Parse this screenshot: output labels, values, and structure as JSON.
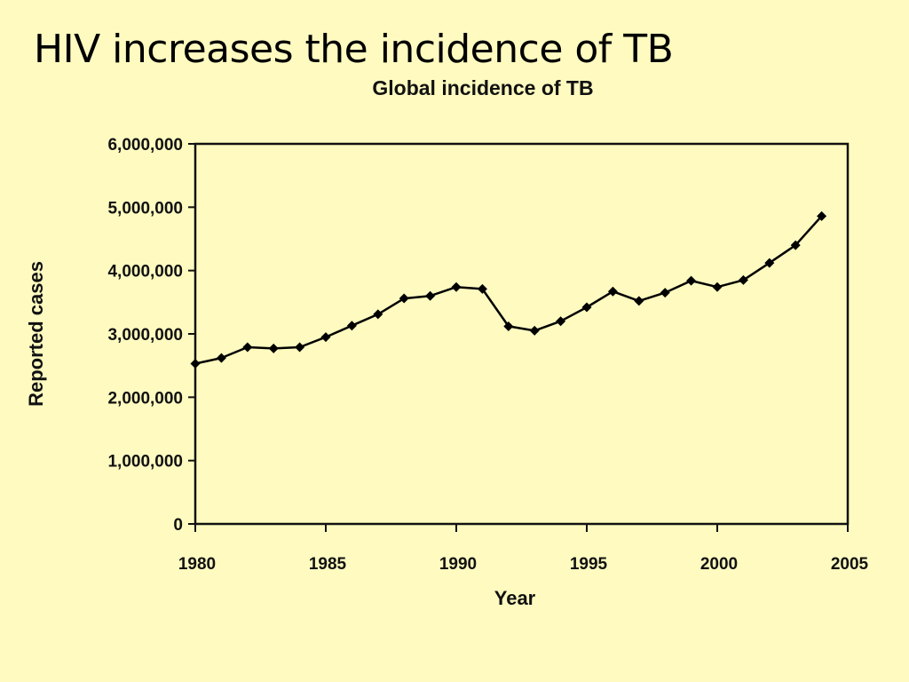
{
  "slide": {
    "title": "HIV increases the incidence of TB"
  },
  "chart_data": {
    "type": "line",
    "title": "Global incidence of TB",
    "xlabel": "Year",
    "ylabel": "Reported cases",
    "xlim": [
      1980,
      2005
    ],
    "ylim": [
      0,
      6000000
    ],
    "x_ticks": [
      "1980",
      "1985",
      "1990",
      "1995",
      "2000",
      "2005"
    ],
    "y_ticks": [
      "0",
      "1,000,000",
      "2,000,000",
      "3,000,000",
      "4,000,000",
      "5,000,000",
      "6,000,000"
    ],
    "grid": false,
    "colors": {
      "line": "#000000",
      "marker": "#000000"
    },
    "series": [
      {
        "x": [
          1980,
          1981,
          1982,
          1983,
          1984,
          1985,
          1986,
          1987,
          1988,
          1989,
          1990,
          1991,
          1992,
          1993,
          1994,
          1995,
          1996,
          1997,
          1998,
          1999,
          2000,
          2001,
          2002,
          2003,
          2004
        ],
        "values": [
          2530000,
          2620000,
          2790000,
          2770000,
          2790000,
          2950000,
          3130000,
          3310000,
          3560000,
          3600000,
          3740000,
          3710000,
          3120000,
          3050000,
          3200000,
          3420000,
          3670000,
          3520000,
          3650000,
          3840000,
          3740000,
          3850000,
          4120000,
          4400000,
          4860000
        ]
      }
    ]
  }
}
